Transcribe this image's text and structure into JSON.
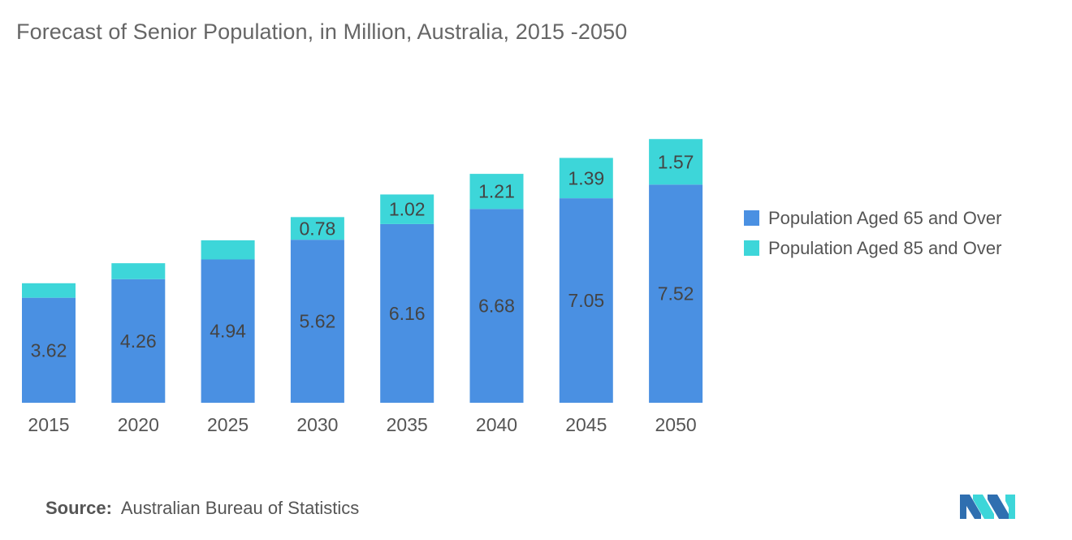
{
  "chart_data": {
    "type": "bar",
    "stacked": true,
    "title": "Forecast of Senior Population, in Million, Australia, 2015 -2050",
    "categories": [
      "2015",
      "2020",
      "2025",
      "2030",
      "2035",
      "2040",
      "2045",
      "2050"
    ],
    "series": [
      {
        "name": "Population Aged 65 and Over",
        "color": "#4a90e2",
        "values": [
          3.62,
          4.26,
          4.94,
          5.62,
          6.16,
          6.68,
          7.05,
          7.52
        ],
        "labels": [
          "3.62",
          "4.26",
          "4.94",
          "5.62",
          "6.16",
          "6.68",
          "7.05",
          "7.52"
        ]
      },
      {
        "name": "Population Aged 85 and Over",
        "color": "#3dd6d9",
        "values": [
          0.5,
          0.55,
          0.66,
          0.78,
          1.02,
          1.21,
          1.39,
          1.57
        ],
        "labels": [
          "",
          "",
          "",
          "0.78",
          "1.02",
          "1.21",
          "1.39",
          "1.57"
        ]
      }
    ],
    "xlabel": "",
    "ylabel": "",
    "ylim": [
      0,
      9.6
    ],
    "grid": false,
    "legend_position": "right"
  },
  "source": {
    "label": "Source:",
    "text": "Australian Bureau of Statistics"
  },
  "logo": {
    "icon": "mordor-intelligence-logo",
    "colors": [
      "#2f6fb0",
      "#3dd6d9"
    ]
  }
}
